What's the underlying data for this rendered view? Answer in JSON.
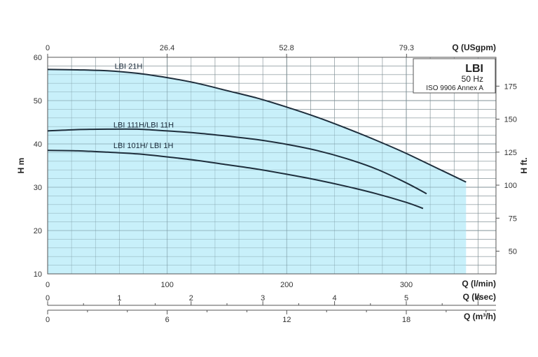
{
  "chart_data": {
    "type": "line",
    "title": "LBI",
    "legend_box": {
      "title": "LBI",
      "frequency": "50 Hz",
      "standard": "ISO 9906 Annex A"
    },
    "axes": {
      "x_bottom": {
        "label": "Q (l/min)",
        "range": [
          0,
          375
        ],
        "ticks": [
          "0",
          "100",
          "200",
          "300"
        ],
        "tick_values": [
          0,
          100,
          200,
          300
        ]
      },
      "x_lps": {
        "label": "Q (l/sec)",
        "range": [
          0,
          6.25
        ],
        "ticks": [
          "0",
          "1",
          "2",
          "3",
          "4",
          "5",
          "6"
        ],
        "tick_values": [
          0,
          1,
          2,
          3,
          4,
          5,
          6
        ]
      },
      "x_m3h": {
        "label": "Q (m³/h)",
        "range": [
          0,
          22.5
        ],
        "ticks": [
          "0",
          "6",
          "12",
          "18"
        ],
        "tick_values": [
          0,
          6,
          12,
          18
        ]
      },
      "x_top": {
        "label": "Q (USgpm)",
        "range": [
          0,
          99.1
        ],
        "ticks": [
          "0",
          "26.4",
          "52.8",
          "79.3"
        ],
        "tick_values": [
          0,
          26.4,
          52.8,
          79.3
        ]
      },
      "y_left": {
        "label": "H m",
        "range": [
          10,
          60
        ],
        "ticks": [
          "10",
          "20",
          "30",
          "40",
          "50",
          "60"
        ],
        "tick_values": [
          10,
          20,
          30,
          40,
          50,
          60
        ]
      },
      "y_right": {
        "label": "H ft.",
        "range": [
          32.8,
          196.9
        ],
        "ticks": [
          "50",
          "75",
          "100",
          "125",
          "150",
          "175"
        ],
        "tick_values": [
          50,
          75,
          100,
          125,
          150,
          175
        ]
      }
    },
    "grid": true,
    "shaded_area_color": "#c8f0fa",
    "series": [
      {
        "name": "LBI 21H",
        "label_at": [
          56,
          57.3
        ],
        "color": "#1e2e3c",
        "x": [
          0,
          25,
          50,
          75,
          100,
          125,
          150,
          175,
          200,
          225,
          250,
          275,
          300,
          325,
          350
        ],
        "y": [
          57.2,
          57.1,
          56.9,
          56.3,
          55.3,
          54.0,
          52.3,
          50.6,
          48.5,
          46.2,
          43.6,
          40.8,
          37.8,
          34.5,
          31.2
        ]
      },
      {
        "name": "LBI 111H/LBI 11H",
        "label_at": [
          55,
          43.8
        ],
        "color": "#1e2e3c",
        "x": [
          0,
          25,
          50,
          75,
          100,
          125,
          150,
          175,
          200,
          225,
          250,
          275,
          300,
          317
        ],
        "y": [
          43.0,
          43.3,
          43.4,
          43.4,
          43.0,
          42.5,
          41.8,
          41.0,
          39.9,
          38.5,
          36.6,
          34.2,
          31.0,
          28.5
        ]
      },
      {
        "name": "LBI 101H/ LBI 1H",
        "label_at": [
          55,
          39.0
        ],
        "color": "#1e2e3c",
        "x": [
          0,
          25,
          50,
          75,
          100,
          125,
          150,
          175,
          200,
          225,
          250,
          275,
          300,
          314
        ],
        "y": [
          38.5,
          38.4,
          38.1,
          37.7,
          37.0,
          36.2,
          35.2,
          34.2,
          33.0,
          31.7,
          30.2,
          28.5,
          26.5,
          25.1
        ]
      }
    ]
  }
}
